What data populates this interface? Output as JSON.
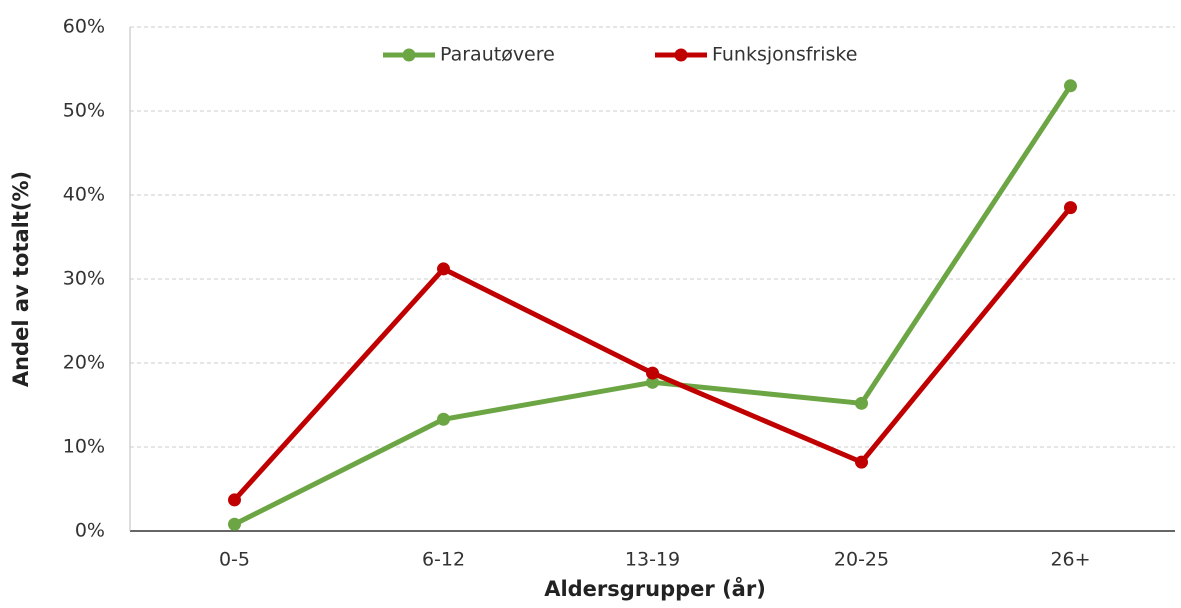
{
  "chart_data": {
    "type": "line",
    "x_label": "Aldersgrupper (år)",
    "y_label": "Andel av totalt(%)",
    "categories": [
      "0-5",
      "6-12",
      "13-19",
      "20-25",
      "26+"
    ],
    "series": [
      {
        "name": "Parautøvere",
        "color": "#6ca544",
        "values": [
          0.8,
          13.3,
          17.7,
          15.2,
          53.0
        ]
      },
      {
        "name": "Funksjonsfriske",
        "color": "#c00000",
        "values": [
          3.7,
          31.2,
          18.8,
          8.2,
          38.5
        ]
      }
    ],
    "ylim": [
      0,
      60
    ],
    "yticks": [
      {
        "value": 0,
        "label": "0%"
      },
      {
        "value": 10,
        "label": "10%"
      },
      {
        "value": 20,
        "label": "20%"
      },
      {
        "value": 30,
        "label": "30%"
      },
      {
        "value": 40,
        "label": "40%"
      },
      {
        "value": 50,
        "label": "50%"
      },
      {
        "value": 60,
        "label": "60%"
      }
    ],
    "grid": true,
    "legend": "top"
  }
}
